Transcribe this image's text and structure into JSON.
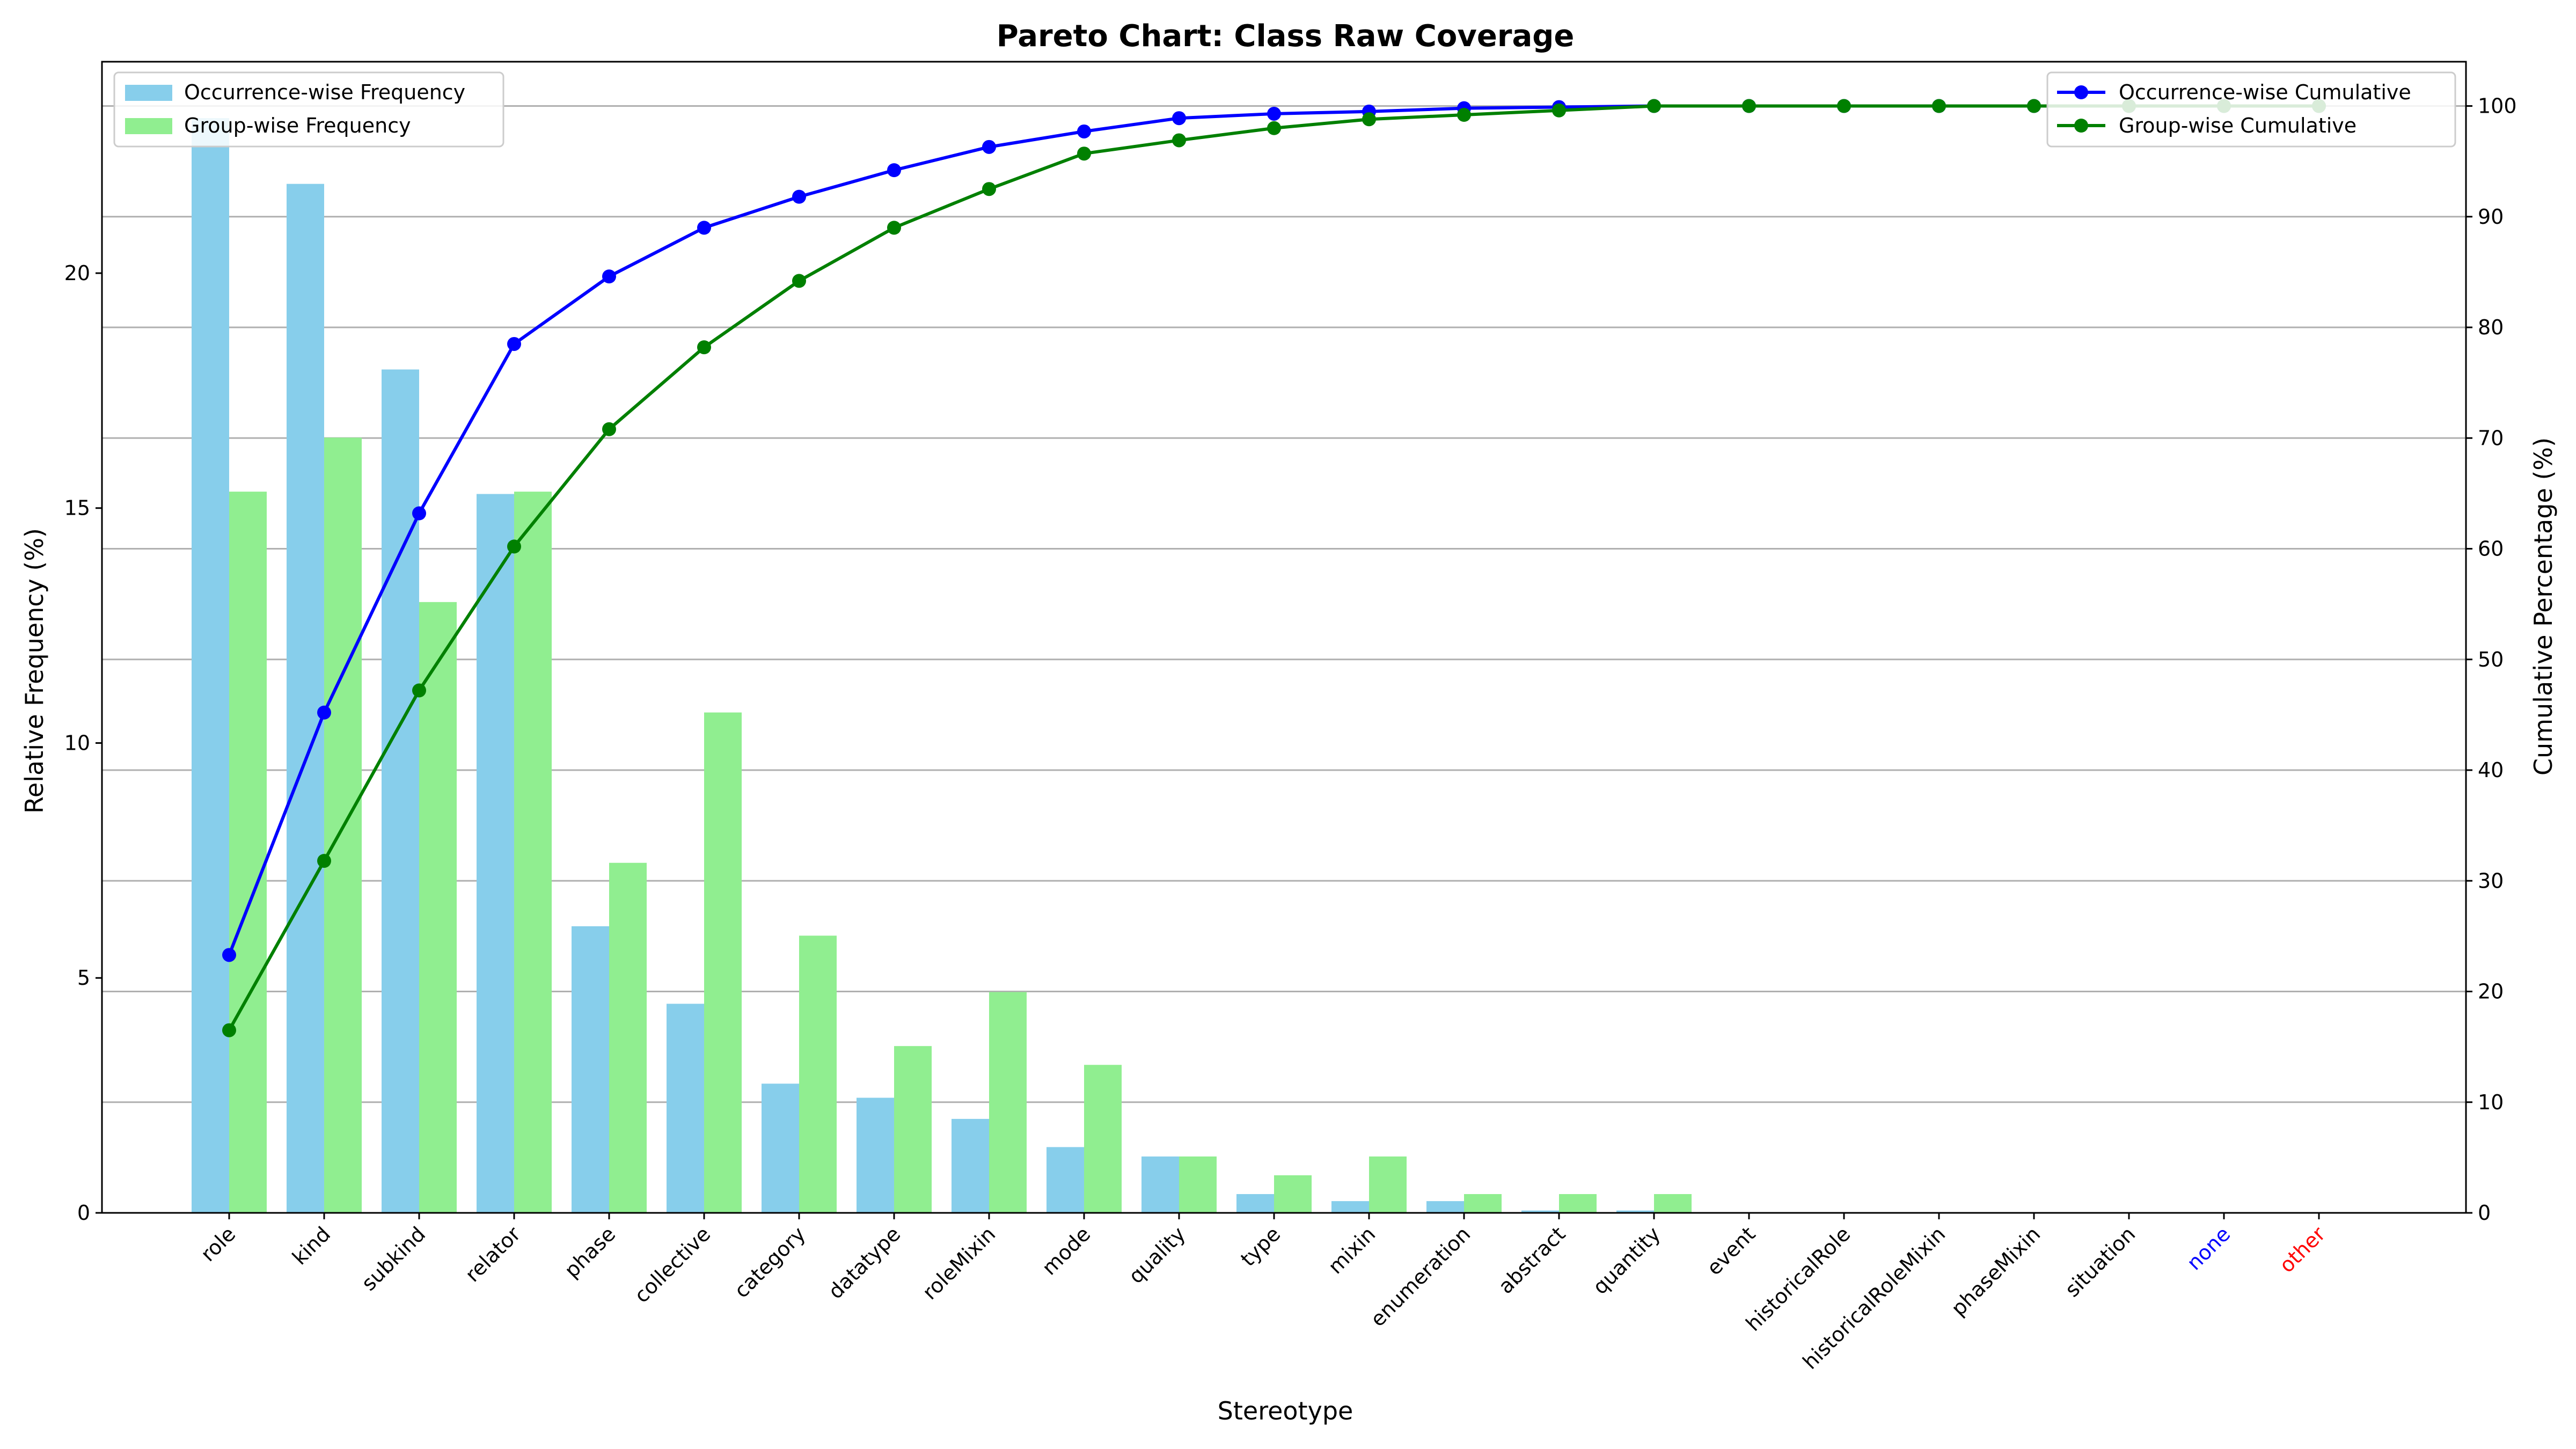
{
  "chart_data": {
    "type": "bar",
    "title": "Pareto Chart: Class Raw Coverage",
    "xlabel": "Stereotype",
    "ylabel": "Relative Frequency (%)",
    "y2label": "Cumulative Percentage (%)",
    "categories": [
      "role",
      "kind",
      "subkind",
      "relator",
      "phase",
      "collective",
      "category",
      "datatype",
      "roleMixin",
      "mode",
      "quality",
      "type",
      "mixin",
      "enumeration",
      "abstract",
      "quantity",
      "event",
      "historicalRole",
      "historicalRoleMixin",
      "phaseMixin",
      "situation",
      "none",
      "other"
    ],
    "category_label_colors": {
      "none": "#0000ff",
      "other": "#ff0000"
    },
    "ylim": [
      0,
      24.5
    ],
    "y2lim": [
      0,
      104
    ],
    "yticks": [
      0,
      5,
      10,
      15,
      20
    ],
    "y2ticks": [
      0,
      10,
      20,
      30,
      40,
      50,
      60,
      70,
      80,
      90,
      100
    ],
    "grid": true,
    "bar_series": [
      {
        "name": "Occurrence-wise Frequency",
        "color": "#87ceeb",
        "values": [
          23.3,
          21.9,
          17.95,
          15.3,
          6.1,
          4.45,
          2.75,
          2.45,
          2.0,
          1.4,
          1.2,
          0.4,
          0.25,
          0.25,
          0.05,
          0.05,
          0,
          0,
          0,
          0,
          0,
          0,
          0
        ]
      },
      {
        "name": "Group-wise Frequency",
        "color": "#90ee90",
        "values": [
          15.35,
          16.5,
          13.0,
          15.35,
          7.45,
          10.65,
          5.9,
          3.55,
          4.7,
          3.15,
          1.2,
          0.8,
          1.2,
          0.4,
          0.4,
          0.4,
          0,
          0,
          0,
          0,
          0,
          0,
          0
        ]
      }
    ],
    "line_series": [
      {
        "name": "Occurrence-wise Cumulative",
        "color": "#0000ff",
        "values": [
          23.3,
          45.2,
          63.2,
          78.5,
          84.6,
          89.0,
          91.8,
          94.2,
          96.3,
          97.7,
          98.9,
          99.3,
          99.5,
          99.8,
          99.9,
          100,
          100,
          100,
          100,
          100,
          100,
          100,
          100
        ]
      },
      {
        "name": "Group-wise Cumulative",
        "color": "#008000",
        "values": [
          16.5,
          31.8,
          47.2,
          60.2,
          70.8,
          78.2,
          84.2,
          89.0,
          92.5,
          95.7,
          96.9,
          98.0,
          98.8,
          99.2,
          99.6,
          100,
          100,
          100,
          100,
          100,
          100,
          100,
          100
        ]
      }
    ],
    "legends": {
      "bars": "top-left",
      "lines": "top-right"
    }
  }
}
